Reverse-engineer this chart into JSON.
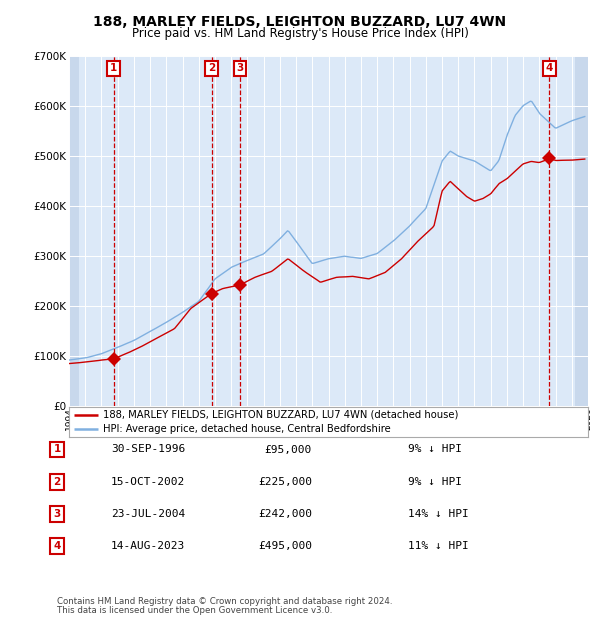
{
  "title": "188, MARLEY FIELDS, LEIGHTON BUZZARD, LU7 4WN",
  "subtitle": "Price paid vs. HM Land Registry's House Price Index (HPI)",
  "legend_label_red": "188, MARLEY FIELDS, LEIGHTON BUZZARD, LU7 4WN (detached house)",
  "legend_label_blue": "HPI: Average price, detached house, Central Bedfordshire",
  "footer1": "Contains HM Land Registry data © Crown copyright and database right 2024.",
  "footer2": "This data is licensed under the Open Government Licence v3.0.",
  "transactions": [
    {
      "num": 1,
      "date": "30-SEP-1996",
      "year": 1996.75,
      "price": 95000,
      "hpi_pct": "9% ↓ HPI"
    },
    {
      "num": 2,
      "date": "15-OCT-2002",
      "year": 2002.79,
      "price": 225000,
      "hpi_pct": "9% ↓ HPI"
    },
    {
      "num": 3,
      "date": "23-JUL-2004",
      "year": 2004.56,
      "price": 242000,
      "hpi_pct": "14% ↓ HPI"
    },
    {
      "num": 4,
      "date": "14-AUG-2023",
      "year": 2023.62,
      "price": 495000,
      "hpi_pct": "11% ↓ HPI"
    }
  ],
  "xlim": [
    1994.0,
    2026.0
  ],
  "ylim": [
    0,
    700000
  ],
  "yticks": [
    0,
    100000,
    200000,
    300000,
    400000,
    500000,
    600000,
    700000
  ],
  "ytick_labels": [
    "£0",
    "£100K",
    "£200K",
    "£300K",
    "£400K",
    "£500K",
    "£600K",
    "£700K"
  ],
  "bg_color": "#dce9f8",
  "hatch_color": "#c8d8ec",
  "red_line_color": "#cc0000",
  "blue_line_color": "#80b0e0",
  "grid_color": "#ffffff",
  "vline_color": "#cc0000",
  "marker_color": "#cc0000",
  "hpi_keypoints_x": [
    1994.0,
    1995.0,
    1996.0,
    1997.0,
    1998.0,
    1999.0,
    2000.0,
    2001.0,
    2002.0,
    2003.0,
    2004.0,
    2005.0,
    2006.0,
    2007.0,
    2007.5,
    2008.0,
    2009.0,
    2010.0,
    2011.0,
    2012.0,
    2013.0,
    2014.0,
    2015.0,
    2016.0,
    2017.0,
    2017.5,
    2018.0,
    2019.0,
    2020.0,
    2020.5,
    2021.0,
    2021.5,
    2022.0,
    2022.5,
    2023.0,
    2023.5,
    2024.0,
    2025.0,
    2025.8
  ],
  "hpi_keypoints_y": [
    92000,
    96000,
    105000,
    118000,
    132000,
    150000,
    168000,
    188000,
    210000,
    255000,
    278000,
    292000,
    305000,
    335000,
    352000,
    330000,
    285000,
    295000,
    300000,
    295000,
    305000,
    330000,
    360000,
    395000,
    490000,
    510000,
    500000,
    490000,
    470000,
    490000,
    540000,
    580000,
    600000,
    610000,
    585000,
    570000,
    555000,
    570000,
    578000
  ],
  "prop_keypoints_x": [
    1994.0,
    1995.0,
    1996.0,
    1996.75,
    1997.5,
    1998.5,
    1999.5,
    2000.5,
    2001.5,
    2002.79,
    2003.5,
    2004.56,
    2005.5,
    2006.5,
    2007.5,
    2008.5,
    2009.5,
    2010.5,
    2011.5,
    2012.5,
    2013.5,
    2014.5,
    2015.5,
    2016.5,
    2017.0,
    2017.5,
    2018.0,
    2018.5,
    2019.0,
    2019.5,
    2020.0,
    2020.5,
    2021.0,
    2021.5,
    2022.0,
    2022.5,
    2023.0,
    2023.62,
    2024.0,
    2025.0,
    2025.8
  ],
  "prop_keypoints_y": [
    85000,
    88000,
    92000,
    95000,
    105000,
    120000,
    138000,
    155000,
    195000,
    225000,
    235000,
    242000,
    258000,
    270000,
    295000,
    270000,
    248000,
    258000,
    260000,
    255000,
    268000,
    295000,
    330000,
    360000,
    430000,
    450000,
    435000,
    420000,
    410000,
    415000,
    425000,
    445000,
    455000,
    470000,
    485000,
    490000,
    488000,
    495000,
    492000,
    493000,
    495000
  ]
}
